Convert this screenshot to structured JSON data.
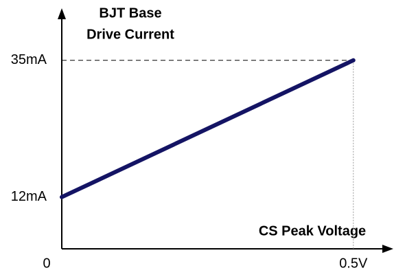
{
  "chart_data": {
    "type": "line",
    "ylabel": [
      "BJT Base",
      "Drive Current"
    ],
    "xlabel": "CS Peak Voltage",
    "x": [
      0,
      0.5
    ],
    "series": [
      {
        "name": null,
        "color": "#141464",
        "values": [
          12,
          35
        ]
      }
    ],
    "xlim": [
      0,
      0.565
    ],
    "ylim": [
      3.3,
      43.4
    ],
    "xticks": [
      0,
      {
        "value": 0.5,
        "label": "0.5V"
      }
    ],
    "yticks": [
      {
        "value": 12,
        "label": "12mA"
      },
      {
        "value": 35,
        "label": "35mA"
      }
    ]
  }
}
